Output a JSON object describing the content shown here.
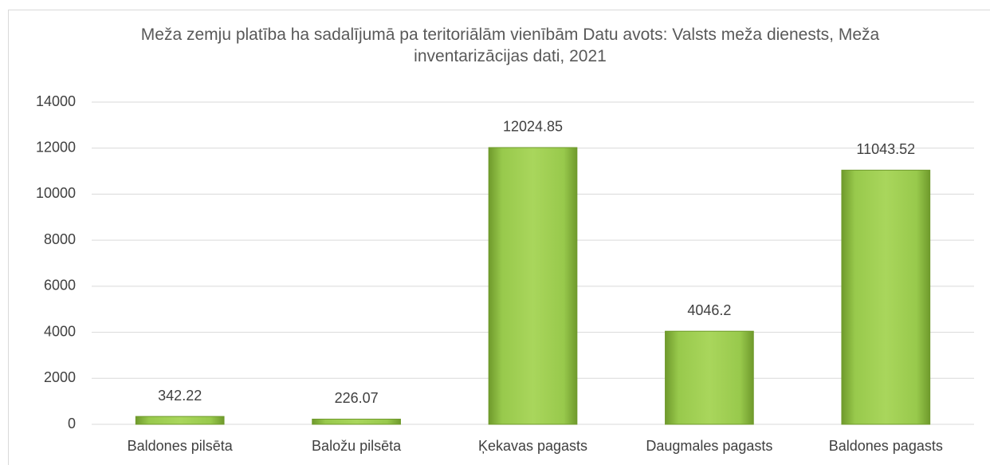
{
  "chart_data": {
    "type": "bar",
    "title": "Meža zemju platība ha sadalījumā pa teritoriālām vienībām Datu avots: Valsts meža dienests, Meža inventarizācijas dati, 2021",
    "categories": [
      "Baldones pilsēta",
      "Baložu pilsēta",
      "Ķekavas pagasts",
      "Daugmales pagasts",
      "Baldones pagasts"
    ],
    "values": [
      342.22,
      226.07,
      12024.85,
      4046.2,
      11043.52
    ],
    "color": "#92c544",
    "ylim": [
      0,
      14000
    ],
    "yticks": [
      0,
      2000,
      4000,
      6000,
      8000,
      10000,
      12000,
      14000
    ],
    "grid": true
  }
}
